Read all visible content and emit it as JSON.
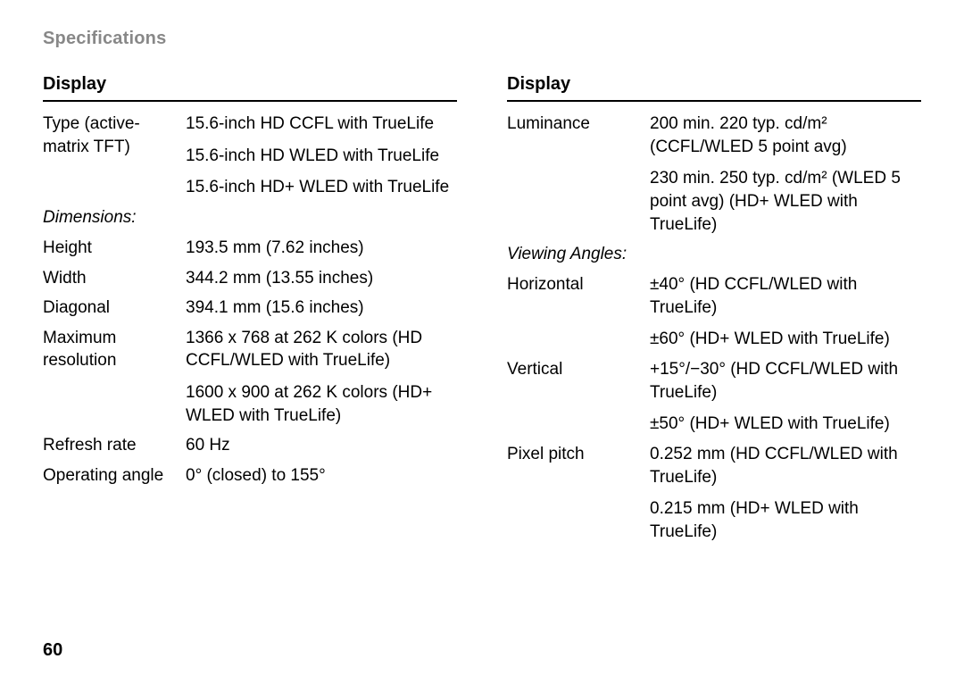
{
  "header": "Specifications",
  "pageNumber": "60",
  "left": {
    "title": "Display",
    "rows": [
      {
        "label": "Type (active-matrix TFT)",
        "values": [
          "15.6-inch HD CCFL with TrueLife",
          "15.6-inch HD WLED with TrueLife",
          "15.6-inch HD+ WLED with TrueLife"
        ]
      }
    ],
    "sub1": "Dimensions:",
    "rows2": [
      {
        "label": "Height",
        "values": [
          "193.5 mm (7.62 inches)"
        ]
      },
      {
        "label": "Width",
        "values": [
          "344.2 mm (13.55 inches)"
        ]
      },
      {
        "label": "Diagonal",
        "values": [
          "394.1 mm (15.6 inches)"
        ]
      },
      {
        "label": "Maximum resolution",
        "values": [
          "1366 x 768 at 262 K colors (HD CCFL/WLED with TrueLife)",
          "1600 x 900 at 262 K colors (HD+ WLED with TrueLife)"
        ]
      },
      {
        "label": "Refresh rate",
        "values": [
          "60 Hz"
        ]
      },
      {
        "label": "Operating angle",
        "values": [
          "0° (closed) to 155°"
        ]
      }
    ]
  },
  "right": {
    "title": "Display",
    "rows": [
      {
        "label": "Luminance",
        "values": [
          "200 min. 220 typ. cd/m² (CCFL/WLED 5 point avg)",
          "230 min. 250 typ. cd/m² (WLED 5 point avg) (HD+ WLED with TrueLife)"
        ]
      }
    ],
    "sub1": "Viewing Angles:",
    "rows2": [
      {
        "label": "Horizontal",
        "values": [
          "±40° (HD CCFL/WLED with TrueLife)",
          "±60° (HD+ WLED with TrueLife)"
        ]
      },
      {
        "label": "Vertical",
        "values": [
          "+15°/−30° (HD CCFL/WLED with TrueLife)",
          "±50° (HD+ WLED with TrueLife)"
        ]
      },
      {
        "label": "Pixel pitch",
        "values": [
          "0.252 mm (HD CCFL/WLED with TrueLife)",
          "0.215 mm (HD+ WLED with TrueLife)"
        ]
      }
    ]
  }
}
